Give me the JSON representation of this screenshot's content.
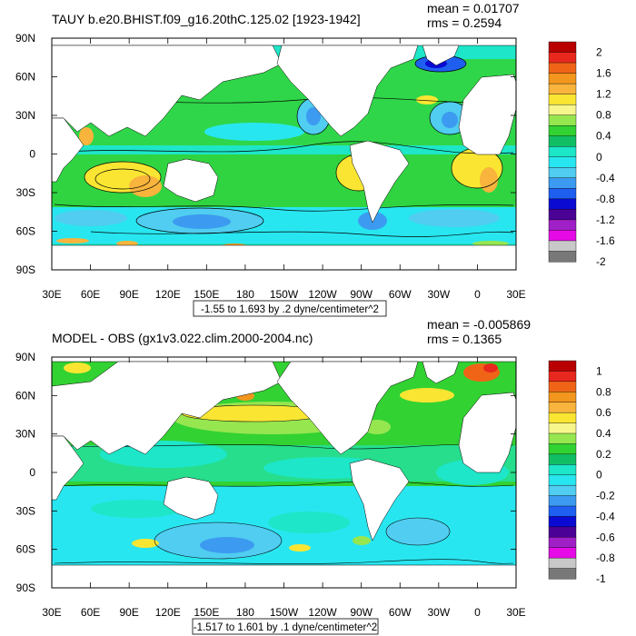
{
  "chart_data": [
    {
      "type": "heatmap",
      "title": "TAUY b.e20.BHIST.f09_g16.20thC.125.02 [1923-1942]",
      "stats": {
        "mean": "mean = 0.01707",
        "rms": "rms = 0.2594"
      },
      "xtick_labels": [
        "30E",
        "60E",
        "90E",
        "120E",
        "150E",
        "180",
        "150W",
        "120W",
        "90W",
        "60W",
        "30W",
        "0",
        "30E"
      ],
      "ytick_labels": [
        "90N",
        "60N",
        "30N",
        "0",
        "30S",
        "60S",
        "90S"
      ],
      "xlim": [
        30,
        390
      ],
      "ylim": [
        -90,
        90
      ],
      "grid": false,
      "contour_note": "-1.55 to 1.693 by .2 dyne/centimeter^2",
      "colorbar": {
        "labels": [
          "2",
          "1.6",
          "1.2",
          "0.8",
          "0.4",
          "0",
          "-0.4",
          "-0.8",
          "-1.2",
          "-1.6",
          "-2"
        ],
        "colors": [
          "#b80000",
          "#e8281e",
          "#f06418",
          "#f2961e",
          "#f8b43c",
          "#fae632",
          "#f6f68c",
          "#96e650",
          "#32d232",
          "#12be64",
          "#1ee6c8",
          "#28e6f0",
          "#50cdf0",
          "#3c9bf0",
          "#1e5ff0",
          "#0a0ad2",
          "#4b0096",
          "#a020c8",
          "#e60ae6",
          "#c8c8c8",
          "#787878"
        ]
      }
    },
    {
      "type": "heatmap",
      "title": "MODEL - OBS (gx1v3.022.clim.2000-2004.nc)",
      "stats": {
        "mean": "mean = -0.005869",
        "rms": "rms = 0.1365"
      },
      "xtick_labels": [
        "30E",
        "60E",
        "90E",
        "120E",
        "150E",
        "180",
        "150W",
        "120W",
        "90W",
        "60W",
        "30W",
        "0",
        "30E"
      ],
      "ytick_labels": [
        "90N",
        "60N",
        "30N",
        "0",
        "30S",
        "60S",
        "90S"
      ],
      "xlim": [
        30,
        390
      ],
      "ylim": [
        -90,
        90
      ],
      "grid": false,
      "contour_note": "-1.517 to 1.601 by .1 dyne/centimeter^2",
      "colorbar": {
        "labels": [
          "1",
          "0.8",
          "0.6",
          "0.4",
          "0.2",
          "0",
          "-0.2",
          "-0.4",
          "-0.6",
          "-0.8",
          "-1"
        ],
        "colors": [
          "#b80000",
          "#e8281e",
          "#f06418",
          "#f2961e",
          "#f8b43c",
          "#fae632",
          "#f6f68c",
          "#96e650",
          "#32d232",
          "#12be64",
          "#1ee6c8",
          "#28e6f0",
          "#50cdf0",
          "#3c9bf0",
          "#1e5ff0",
          "#0a0ad2",
          "#4b0096",
          "#a020c8",
          "#e60ae6",
          "#c8c8c8",
          "#787878"
        ]
      }
    }
  ]
}
